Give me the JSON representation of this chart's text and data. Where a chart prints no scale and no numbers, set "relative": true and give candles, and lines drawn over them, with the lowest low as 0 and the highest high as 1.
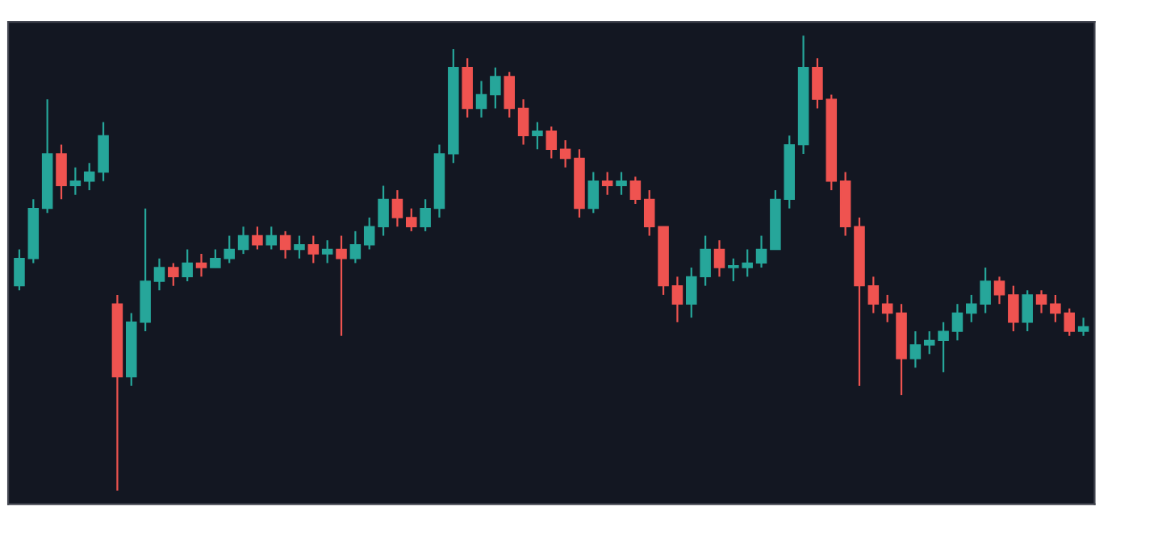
{
  "chart_data": {
    "type": "candlestick",
    "relative": true,
    "categories": [
      null,
      null,
      null,
      null,
      null,
      null,
      null,
      null,
      null,
      null,
      null,
      null,
      null,
      null,
      null,
      null,
      null,
      null,
      null,
      null,
      null,
      null,
      null,
      null,
      null,
      null,
      null,
      null,
      null,
      null,
      null,
      null,
      null,
      null,
      null,
      null,
      null,
      null,
      null,
      null,
      null,
      null,
      null,
      null,
      null,
      null,
      null,
      null,
      null,
      null,
      null,
      null,
      null,
      null,
      null,
      null,
      null,
      null,
      null,
      null,
      null,
      null,
      null,
      null,
      null,
      null,
      null,
      null,
      null,
      null,
      null,
      null,
      null,
      null,
      null,
      null,
      null
    ],
    "ohlc": [
      [
        0.45,
        0.53,
        0.44,
        0.51
      ],
      [
        0.51,
        0.64,
        0.5,
        0.62
      ],
      [
        0.62,
        0.86,
        0.61,
        0.74
      ],
      [
        0.74,
        0.76,
        0.64,
        0.67
      ],
      [
        0.67,
        0.71,
        0.65,
        0.68
      ],
      [
        0.68,
        0.72,
        0.66,
        0.7
      ],
      [
        0.7,
        0.81,
        0.68,
        0.78
      ],
      [
        0.41,
        0.43,
        0.0,
        0.25
      ],
      [
        0.25,
        0.39,
        0.23,
        0.37
      ],
      [
        0.37,
        0.62,
        0.35,
        0.46
      ],
      [
        0.46,
        0.51,
        0.44,
        0.49
      ],
      [
        0.49,
        0.5,
        0.45,
        0.47
      ],
      [
        0.47,
        0.53,
        0.46,
        0.5
      ],
      [
        0.5,
        0.52,
        0.47,
        0.49
      ],
      [
        0.49,
        0.53,
        0.49,
        0.51
      ],
      [
        0.51,
        0.56,
        0.5,
        0.53
      ],
      [
        0.53,
        0.58,
        0.52,
        0.56
      ],
      [
        0.56,
        0.58,
        0.53,
        0.54
      ],
      [
        0.54,
        0.58,
        0.53,
        0.56
      ],
      [
        0.56,
        0.57,
        0.51,
        0.53
      ],
      [
        0.53,
        0.56,
        0.51,
        0.54
      ],
      [
        0.54,
        0.56,
        0.5,
        0.52
      ],
      [
        0.52,
        0.55,
        0.5,
        0.53
      ],
      [
        0.53,
        0.56,
        0.34,
        0.51
      ],
      [
        0.51,
        0.57,
        0.5,
        0.54
      ],
      [
        0.54,
        0.6,
        0.53,
        0.58
      ],
      [
        0.58,
        0.67,
        0.56,
        0.64
      ],
      [
        0.64,
        0.66,
        0.58,
        0.6
      ],
      [
        0.6,
        0.62,
        0.57,
        0.58
      ],
      [
        0.58,
        0.64,
        0.57,
        0.62
      ],
      [
        0.62,
        0.76,
        0.6,
        0.74
      ],
      [
        0.74,
        0.97,
        0.72,
        0.93
      ],
      [
        0.93,
        0.95,
        0.82,
        0.84
      ],
      [
        0.84,
        0.9,
        0.82,
        0.87
      ],
      [
        0.87,
        0.93,
        0.84,
        0.91
      ],
      [
        0.91,
        0.92,
        0.82,
        0.84
      ],
      [
        0.84,
        0.86,
        0.76,
        0.78
      ],
      [
        0.78,
        0.81,
        0.75,
        0.79
      ],
      [
        0.79,
        0.8,
        0.73,
        0.75
      ],
      [
        0.75,
        0.77,
        0.71,
        0.73
      ],
      [
        0.73,
        0.75,
        0.6,
        0.62
      ],
      [
        0.62,
        0.7,
        0.61,
        0.68
      ],
      [
        0.68,
        0.7,
        0.65,
        0.67
      ],
      [
        0.67,
        0.7,
        0.65,
        0.68
      ],
      [
        0.68,
        0.69,
        0.63,
        0.64
      ],
      [
        0.64,
        0.66,
        0.56,
        0.58
      ],
      [
        0.58,
        0.58,
        0.43,
        0.45
      ],
      [
        0.45,
        0.47,
        0.37,
        0.41
      ],
      [
        0.41,
        0.49,
        0.38,
        0.47
      ],
      [
        0.47,
        0.56,
        0.45,
        0.53
      ],
      [
        0.53,
        0.55,
        0.47,
        0.49
      ],
      [
        0.49,
        0.51,
        0.46,
        0.49
      ],
      [
        0.49,
        0.53,
        0.47,
        0.5
      ],
      [
        0.5,
        0.56,
        0.49,
        0.53
      ],
      [
        0.53,
        0.66,
        0.53,
        0.64
      ],
      [
        0.64,
        0.78,
        0.62,
        0.76
      ],
      [
        0.76,
        1.0,
        0.74,
        0.93
      ],
      [
        0.93,
        0.95,
        0.84,
        0.86
      ],
      [
        0.86,
        0.87,
        0.66,
        0.68
      ],
      [
        0.68,
        0.7,
        0.56,
        0.58
      ],
      [
        0.58,
        0.6,
        0.23,
        0.45
      ],
      [
        0.45,
        0.47,
        0.39,
        0.41
      ],
      [
        0.41,
        0.43,
        0.37,
        0.39
      ],
      [
        0.39,
        0.41,
        0.21,
        0.29
      ],
      [
        0.29,
        0.35,
        0.27,
        0.32
      ],
      [
        0.32,
        0.35,
        0.3,
        0.33
      ],
      [
        0.33,
        0.37,
        0.26,
        0.35
      ],
      [
        0.35,
        0.41,
        0.33,
        0.39
      ],
      [
        0.39,
        0.43,
        0.37,
        0.41
      ],
      [
        0.41,
        0.49,
        0.39,
        0.46
      ],
      [
        0.46,
        0.47,
        0.41,
        0.43
      ],
      [
        0.43,
        0.45,
        0.35,
        0.37
      ],
      [
        0.37,
        0.44,
        0.35,
        0.43
      ],
      [
        0.43,
        0.44,
        0.39,
        0.41
      ],
      [
        0.41,
        0.43,
        0.37,
        0.39
      ],
      [
        0.39,
        0.4,
        0.34,
        0.35
      ],
      [
        0.35,
        0.38,
        0.34,
        0.36
      ]
    ]
  }
}
